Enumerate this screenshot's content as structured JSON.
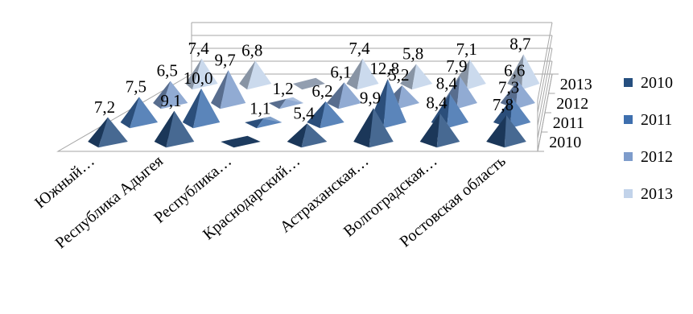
{
  "chart_data": {
    "type": "bar",
    "style": "3d-pyramid",
    "categories": [
      "Южный…",
      "Республика Адыгея",
      "Республика…",
      "Краснодарский…",
      "Астраханская…",
      "Волгоградская…",
      "Ростовская область"
    ],
    "series": [
      {
        "name": "2010",
        "color": "#264f7f",
        "values": [
          7.2,
          9.1,
          0.1,
          5.4,
          9.9,
          8.4,
          7.8
        ]
      },
      {
        "name": "2011",
        "color": "#3e6fae",
        "values": [
          7.5,
          10.0,
          1.1,
          6.2,
          12.8,
          8.4,
          7.3
        ]
      },
      {
        "name": "2012",
        "color": "#7e9ccb",
        "values": [
          6.5,
          9.7,
          1.2,
          6.1,
          5.2,
          7.9,
          6.6
        ]
      },
      {
        "name": "2013",
        "color": "#c2d3ea",
        "values": [
          7.4,
          6.8,
          0.0,
          7.4,
          5.8,
          7.1,
          8.7
        ]
      }
    ],
    "data_labels": [
      [
        "7,2",
        "9,1",
        "",
        "5,4",
        "9,9",
        "8,4",
        "7,8"
      ],
      [
        "7,5",
        "10,0",
        "1,1",
        "6,2",
        "12,8",
        "8,4",
        "7,3"
      ],
      [
        "6,5",
        "9,7",
        "1,2",
        "6,1",
        "5,2",
        "7,9",
        "6,6"
      ],
      [
        "7,4",
        "6,8",
        "",
        "7,4",
        "5,8",
        "7,1",
        "8,7"
      ]
    ],
    "depth_labels": [
      "2010",
      "2011",
      "2012",
      "2013"
    ],
    "legend": [
      "2010",
      "2011",
      "2012",
      "2013"
    ],
    "legend_position": "right",
    "grid": true
  }
}
